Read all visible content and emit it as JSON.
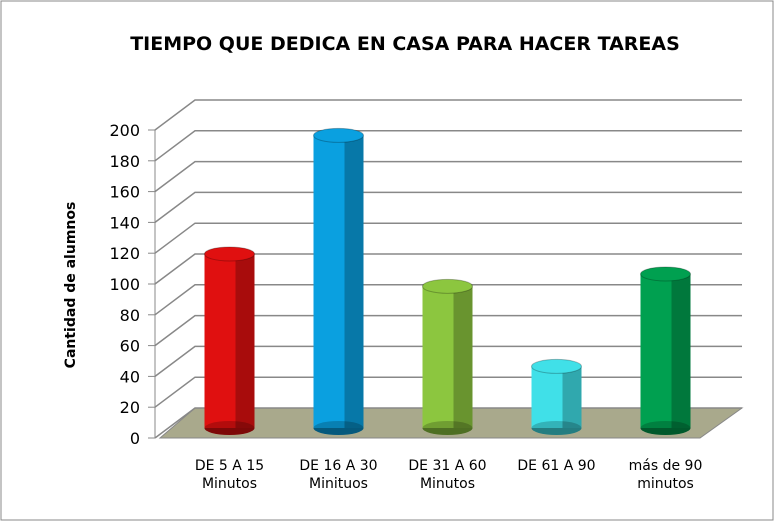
{
  "chart_data": {
    "type": "bar3d-cylinder",
    "title": "TIEMPO QUE DEDICA EN CASA PARA HACER TAREAS",
    "y_label": "Cantidad de alumnos",
    "categories": [
      "DE 5 A 15\nMinutos",
      "DE 16 A 30\nMinituos",
      "DE 31 A 60\nMinutos",
      "DE 61 A 90",
      "más de 90\nminutos"
    ],
    "values": [
      113,
      190,
      92,
      40,
      100
    ],
    "colors": [
      "#e01010",
      "#0aa0e0",
      "#8cc63f",
      "#40e0e8",
      "#00a050"
    ],
    "ylim": [
      0,
      200
    ],
    "yticks": [
      0,
      20,
      40,
      60,
      80,
      100,
      120,
      140,
      160,
      180,
      200
    ],
    "grid": true
  }
}
